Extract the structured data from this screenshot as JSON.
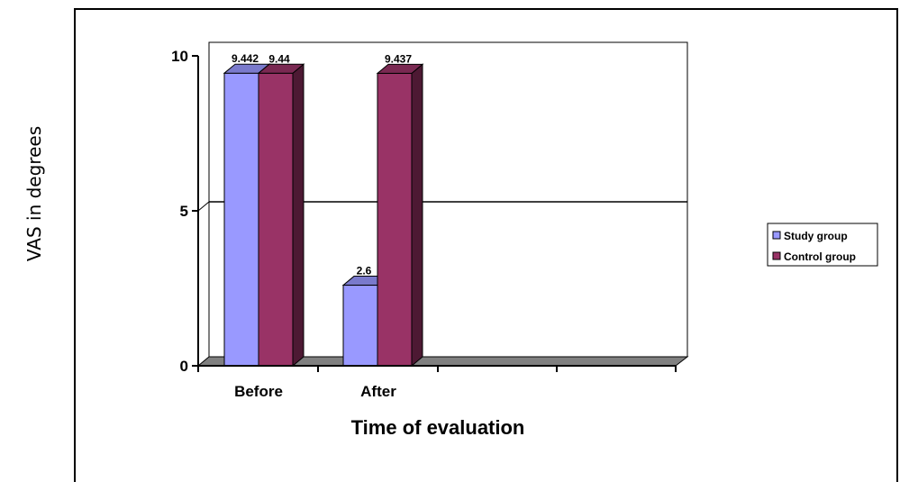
{
  "chart_data": {
    "type": "bar",
    "categories": [
      "Before",
      "After"
    ],
    "series": [
      {
        "name": "Study group",
        "values": [
          9.442,
          2.6
        ],
        "labels": [
          "9.442",
          "2.6"
        ]
      },
      {
        "name": "Control group",
        "values": [
          9.44,
          9.437
        ],
        "labels": [
          "9.44",
          "9.437"
        ]
      }
    ],
    "xlabel": "Time of evaluation",
    "ylabel": "VAS in degrees",
    "ylim": [
      0,
      10
    ],
    "yticks": [
      "0",
      "5",
      "10"
    ],
    "grid": true,
    "legend": "right",
    "style": "3d-clustered-column"
  },
  "colors": {
    "study_front": "#9999ff",
    "study_side": "#6b6bb3",
    "study_top": "#7a7acc",
    "control_front": "#993366",
    "control_side": "#4d1933",
    "control_top": "#7a2952",
    "grid": "#000000",
    "axis": "#000000",
    "floor": "#808080"
  }
}
